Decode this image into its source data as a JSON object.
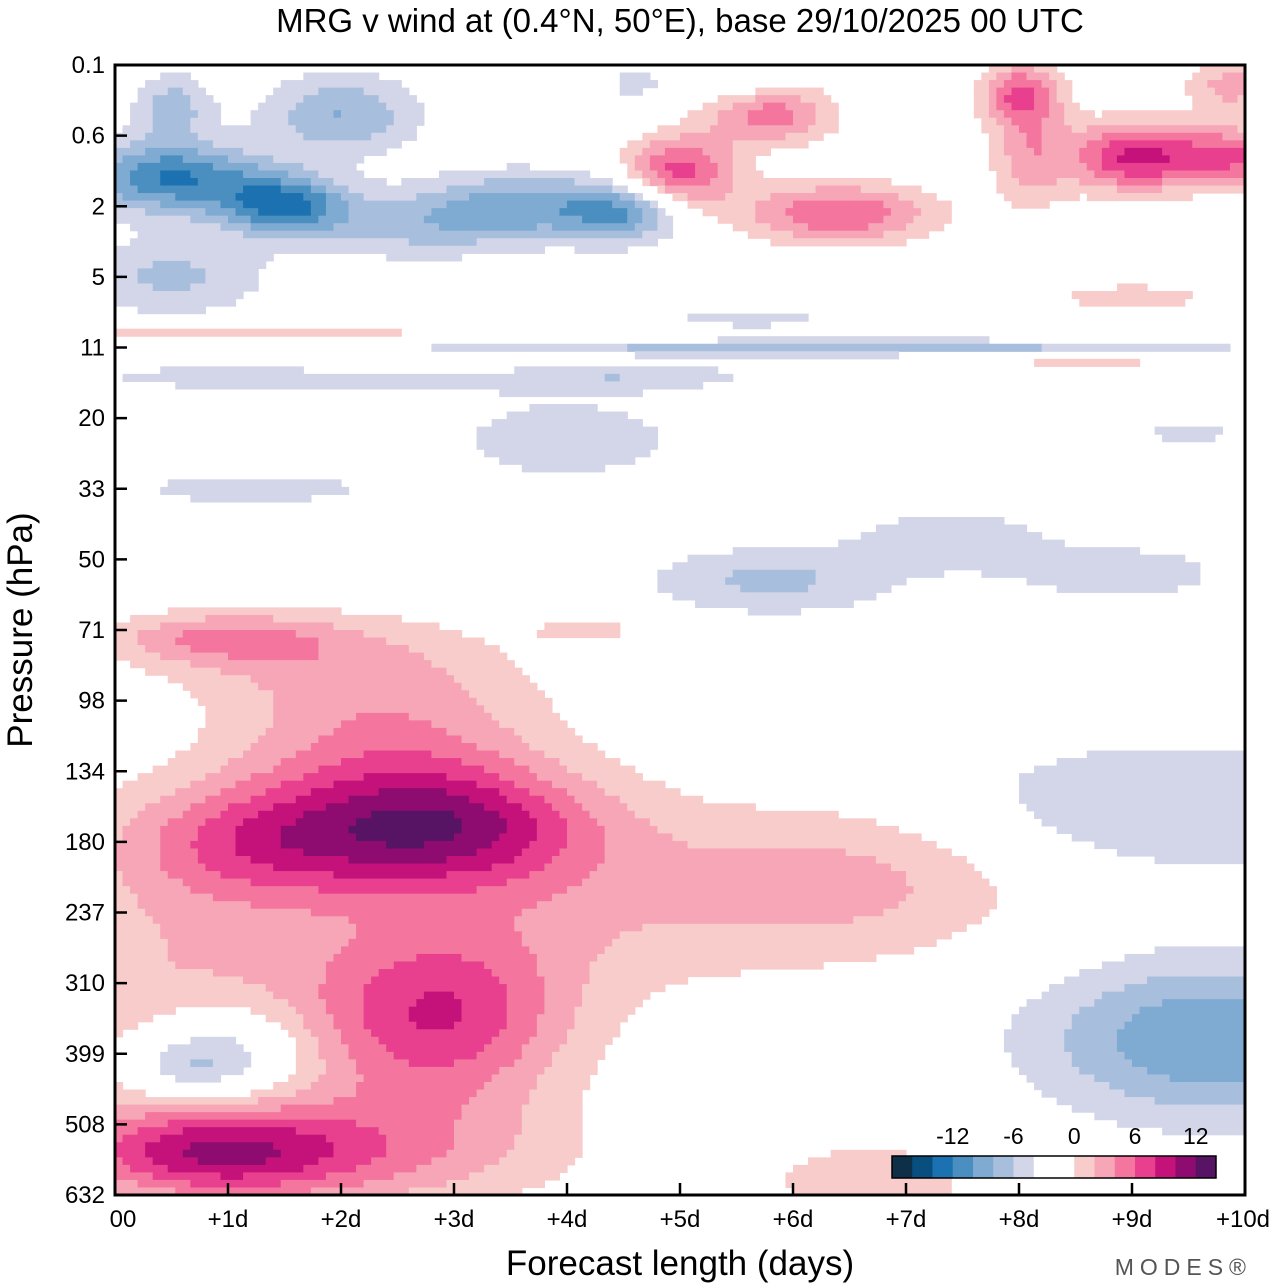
{
  "chart_data": {
    "type": "heatmap",
    "title": "MRG v wind at (0.4°N, 50°E),  base 29/10/2025  00 UTC",
    "xlabel": "Forecast length (days)",
    "ylabel": "Pressure (hPa)",
    "x_ticks": [
      "00",
      "+1d",
      "+2d",
      "+3d",
      "+4d",
      "+5d",
      "+6d",
      "+7d",
      "+8d",
      "+9d",
      "+10d"
    ],
    "y_ticks": [
      "0.1",
      "0.6",
      "2",
      "5",
      "11",
      "20",
      "33",
      "50",
      "71",
      "98",
      "134",
      "180",
      "237",
      "310",
      "399",
      "508",
      "632"
    ],
    "xlim": [
      0,
      10
    ],
    "ylim_levels": [
      0,
      16
    ],
    "legend": {
      "labels": [
        "-12",
        "-6",
        "0",
        "6",
        "12"
      ],
      "colors": [
        "#0d3048",
        "#084f80",
        "#1c72b0",
        "#4a8fbf",
        "#7fabd2",
        "#a8bedd",
        "#d3d6e8",
        "#ffffff",
        "#ffffff",
        "#f9cccc",
        "#f6a6b6",
        "#f4769e",
        "#e8408e",
        "#c4127a",
        "#8e0b70",
        "#581464"
      ],
      "placement": "bottom-right"
    },
    "levels": [
      -14,
      -12,
      -10,
      -8,
      -6,
      -4,
      -2,
      0,
      2,
      4,
      6,
      8,
      10,
      12,
      14
    ],
    "blobs": [
      {
        "t": 0.5,
        "lev": 1.6,
        "st": 0.6,
        "sl": 0.35,
        "amp": -10
      },
      {
        "t": 1.5,
        "lev": 2.0,
        "st": 0.4,
        "sl": 0.3,
        "amp": -10
      },
      {
        "t": 0.5,
        "lev": 0.6,
        "st": 0.25,
        "sl": 0.35,
        "amp": -5
      },
      {
        "t": 2.0,
        "lev": 0.7,
        "st": 0.5,
        "sl": 0.4,
        "amp": -6
      },
      {
        "t": 3.6,
        "lev": 2.0,
        "st": 0.6,
        "sl": 0.35,
        "amp": -7
      },
      {
        "t": 4.5,
        "lev": 2.1,
        "st": 0.35,
        "sl": 0.3,
        "amp": -7
      },
      {
        "t": 2.6,
        "lev": 2.3,
        "st": 0.6,
        "sl": 0.35,
        "amp": -4
      },
      {
        "t": 0.5,
        "lev": 3.0,
        "st": 0.6,
        "sl": 0.4,
        "amp": -4.5
      },
      {
        "t": 5.5,
        "lev": 0.2,
        "st": 0.3,
        "sl": 0.2,
        "amp": -3
      },
      {
        "t": 4.6,
        "lev": 0.25,
        "st": 0.2,
        "sl": 0.2,
        "amp": -2.8
      },
      {
        "t": 5.0,
        "lev": 1.5,
        "st": 0.35,
        "sl": 0.35,
        "amp": 9
      },
      {
        "t": 5.8,
        "lev": 0.7,
        "st": 0.4,
        "sl": 0.3,
        "amp": 7
      },
      {
        "t": 6.4,
        "lev": 2.1,
        "st": 0.6,
        "sl": 0.3,
        "amp": 8
      },
      {
        "t": 8.0,
        "lev": 0.4,
        "st": 0.25,
        "sl": 0.3,
        "amp": 7
      },
      {
        "t": 8.1,
        "lev": 1.2,
        "st": 0.25,
        "sl": 0.6,
        "amp": 5
      },
      {
        "t": 9.0,
        "lev": 1.3,
        "st": 0.4,
        "sl": 0.35,
        "amp": 10
      },
      {
        "t": 9.9,
        "lev": 1.3,
        "st": 0.4,
        "sl": 0.3,
        "amp": 8
      },
      {
        "t": 9.9,
        "lev": 0.3,
        "st": 0.3,
        "sl": 0.25,
        "amp": 5
      },
      {
        "t": 8.5,
        "lev": 4.3,
        "st": 0.8,
        "sl": 0.15,
        "amp": 4
      },
      {
        "t": 9.0,
        "lev": 3.3,
        "st": 0.5,
        "sl": 0.15,
        "amp": 3.5
      },
      {
        "t": 0.9,
        "lev": 8.1,
        "st": 0.7,
        "sl": 0.25,
        "amp": 5
      },
      {
        "t": 2.4,
        "lev": 9.6,
        "st": 1.0,
        "sl": 1.0,
        "amp": 6
      },
      {
        "t": 1.3,
        "lev": 11.0,
        "st": 0.9,
        "sl": 0.6,
        "amp": 7
      },
      {
        "t": 3.0,
        "lev": 10.8,
        "st": 0.9,
        "sl": 0.6,
        "amp": 9
      },
      {
        "t": 2.9,
        "lev": 13.5,
        "st": 0.8,
        "sl": 0.9,
        "amp": 9
      },
      {
        "t": 0.7,
        "lev": 13.0,
        "st": 1.2,
        "sl": 1.4,
        "amp": 4
      },
      {
        "t": 0.8,
        "lev": 15.4,
        "st": 0.9,
        "sl": 0.45,
        "amp": 9
      },
      {
        "t": 2.2,
        "lev": 15.4,
        "st": 1.3,
        "sl": 0.6,
        "amp": 5
      },
      {
        "t": 4.3,
        "lev": 11.8,
        "st": 1.5,
        "sl": 1.0,
        "amp": 3.5
      },
      {
        "t": 6.7,
        "lev": 11.5,
        "st": 1.1,
        "sl": 0.8,
        "amp": 4
      },
      {
        "t": 6.7,
        "lev": 15.8,
        "st": 0.8,
        "sl": 0.5,
        "amp": 3
      },
      {
        "t": 1.0,
        "lev": 14.0,
        "st": 0.5,
        "sl": 0.5,
        "amp": -6
      },
      {
        "t": 0.6,
        "lev": 14.2,
        "st": 0.3,
        "sl": 0.3,
        "amp": -3
      },
      {
        "t": 9.7,
        "lev": 13.8,
        "st": 1.1,
        "sl": 0.8,
        "amp": -8
      },
      {
        "t": 9.3,
        "lev": 10.5,
        "st": 1.6,
        "sl": 0.7,
        "amp": -4
      },
      {
        "t": 5.8,
        "lev": 7.3,
        "st": 0.8,
        "sl": 0.35,
        "amp": -4.5
      },
      {
        "t": 8.9,
        "lev": 7.2,
        "st": 0.8,
        "sl": 0.35,
        "amp": -3
      },
      {
        "t": 7.4,
        "lev": 6.7,
        "st": 0.6,
        "sl": 0.3,
        "amp": -3.5
      },
      {
        "t": 4.0,
        "lev": 5.3,
        "st": 0.9,
        "sl": 0.5,
        "amp": -3
      },
      {
        "t": 1.2,
        "lev": 6.0,
        "st": 0.9,
        "sl": 0.2,
        "amp": -3
      },
      {
        "t": 1.5,
        "lev": 4.4,
        "st": 1.6,
        "sl": 0.2,
        "amp": -3
      },
      {
        "t": 5.5,
        "lev": 4.0,
        "st": 2.5,
        "sl": 0.08,
        "amp": -3
      },
      {
        "t": 7.5,
        "lev": 4.0,
        "st": 2.0,
        "sl": 0.08,
        "amp": -3
      },
      {
        "t": 1.0,
        "lev": 3.8,
        "st": 1.8,
        "sl": 0.08,
        "amp": 3
      },
      {
        "t": 2.5,
        "lev": 4.2,
        "st": 1.2,
        "sl": 0.08,
        "amp": 3
      },
      {
        "t": 4.6,
        "lev": 4.4,
        "st": 0.8,
        "sl": 0.15,
        "amp": -3
      },
      {
        "t": 8.3,
        "lev": 4.4,
        "st": 0.8,
        "sl": 0.12,
        "amp": -3
      },
      {
        "t": 5.6,
        "lev": 3.6,
        "st": 0.8,
        "sl": 0.12,
        "amp": -2.6
      },
      {
        "t": 1.5,
        "lev": 8.4,
        "st": 1.0,
        "sl": 0.4,
        "amp": 2.5
      },
      {
        "t": 4.2,
        "lev": 8.0,
        "st": 0.4,
        "sl": 0.15,
        "amp": 2.5
      },
      {
        "t": 9.5,
        "lev": 5.2,
        "st": 0.5,
        "sl": 0.15,
        "amp": -2.5
      }
    ]
  },
  "brand": "MODES®"
}
